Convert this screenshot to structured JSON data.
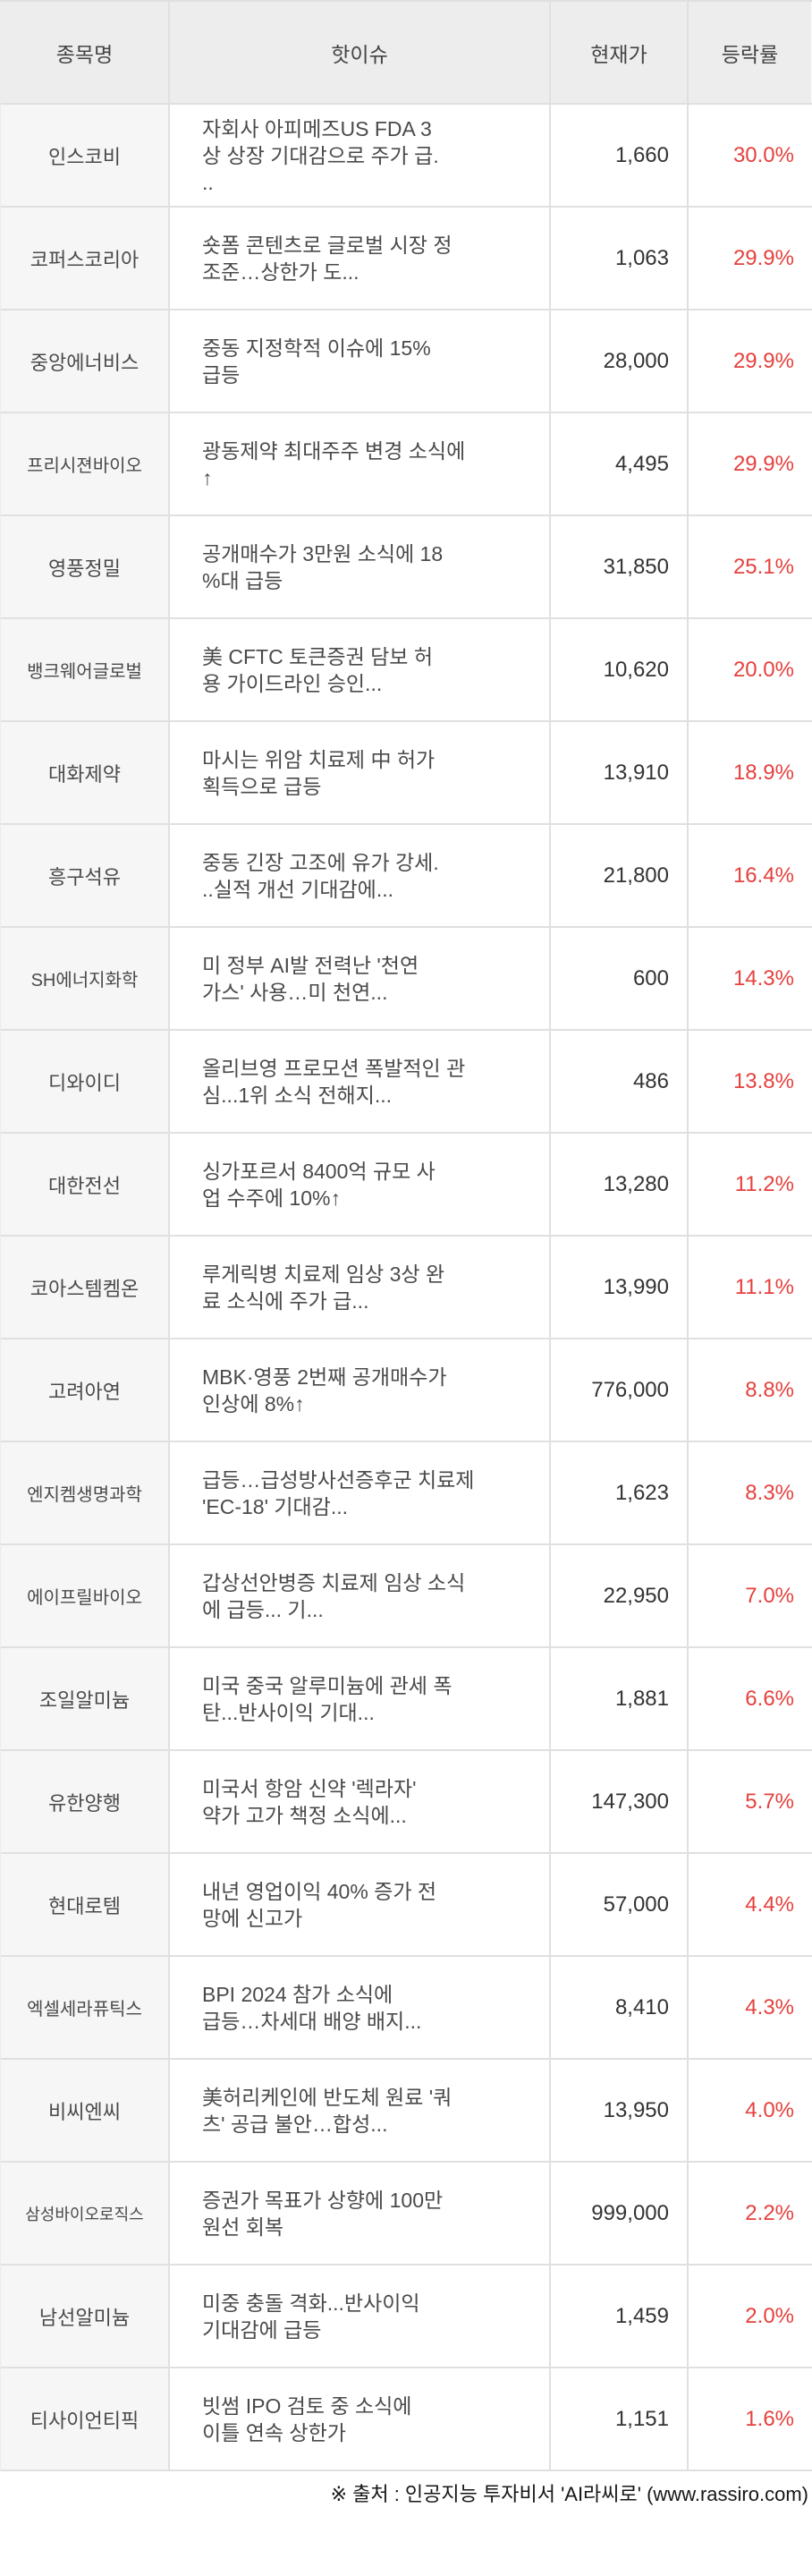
{
  "table": {
    "headers": {
      "name": "종목명",
      "issue": "핫이슈",
      "price": "현재가",
      "change": "등락률"
    },
    "rows": [
      {
        "name": "인스코비",
        "issue": "자회사 아피메즈US FDA 3\n상 상장 기대감으로 주가 급.\n..",
        "price": "1,660",
        "change": "30.0%"
      },
      {
        "name": "코퍼스코리아",
        "issue": "숏폼 콘텐츠로 글로벌 시장 정\n조준…상한가 도...",
        "price": "1,063",
        "change": "29.9%"
      },
      {
        "name": "중앙에너비스",
        "issue": "중동 지정학적 이슈에 15%\n급등",
        "price": "28,000",
        "change": "29.9%"
      },
      {
        "name": "프리시젼바이오",
        "issue": "광동제약 최대주주 변경 소식에\n↑",
        "price": "4,495",
        "change": "29.9%"
      },
      {
        "name": "영풍정밀",
        "issue": "공개매수가 3만원 소식에 18\n%대 급등",
        "price": "31,850",
        "change": "25.1%"
      },
      {
        "name": "뱅크웨어글로벌",
        "issue": "美 CFTC 토큰증권 담보 허\n용 가이드라인 승인...",
        "price": "10,620",
        "change": "20.0%"
      },
      {
        "name": "대화제약",
        "issue": "마시는 위암 치료제 中 허가\n획득으로 급등",
        "price": "13,910",
        "change": "18.9%"
      },
      {
        "name": "흥구석유",
        "issue": "중동 긴장 고조에 유가 강세.\n..실적 개선 기대감에...",
        "price": "21,800",
        "change": "16.4%"
      },
      {
        "name": "SH에너지화학",
        "issue": "미 정부 AI발 전력난 '천연\n가스' 사용…미 천연...",
        "price": "600",
        "change": "14.3%"
      },
      {
        "name": "디와이디",
        "issue": "올리브영 프로모션 폭발적인 관\n심...1위 소식 전해지...",
        "price": "486",
        "change": "13.8%"
      },
      {
        "name": "대한전선",
        "issue": "싱가포르서 8400억 규모 사\n업 수주에 10%↑",
        "price": "13,280",
        "change": "11.2%"
      },
      {
        "name": "코아스템켐온",
        "issue": "루게릭병 치료제 임상 3상 완\n료 소식에 주가 급...",
        "price": "13,990",
        "change": "11.1%"
      },
      {
        "name": "고려아연",
        "issue": "MBK·영풍 2번째 공개매수가\n인상에 8%↑",
        "price": "776,000",
        "change": "8.8%"
      },
      {
        "name": "엔지켐생명과학",
        "issue": "급등…급성방사선증후군 치료제\n'EC-18' 기대감...",
        "price": "1,623",
        "change": "8.3%"
      },
      {
        "name": "에이프릴바이오",
        "issue": "갑상선안병증 치료제 임상 소식\n에 급등... 기...",
        "price": "22,950",
        "change": "7.0%"
      },
      {
        "name": "조일알미늄",
        "issue": "미국 중국 알루미늄에 관세 폭\n탄...반사이익 기대...",
        "price": "1,881",
        "change": "6.6%"
      },
      {
        "name": "유한양행",
        "issue": "미국서 항암 신약 '렉라자'\n약가 고가 책정 소식에...",
        "price": "147,300",
        "change": "5.7%"
      },
      {
        "name": "현대로템",
        "issue": "내년 영업이익 40% 증가 전\n망에 신고가",
        "price": "57,000",
        "change": "4.4%"
      },
      {
        "name": "엑셀세라퓨틱스",
        "issue": "BPI 2024 참가 소식에\n급등…차세대 배양 배지...",
        "price": "8,410",
        "change": "4.3%"
      },
      {
        "name": "비씨엔씨",
        "issue": "美허리케인에 반도체 원료 '쿼\n츠' 공급 불안…합성...",
        "price": "13,950",
        "change": "4.0%"
      },
      {
        "name": "삼성바이오로직스",
        "issue": "증권가 목표가 상향에 100만\n원선 회복",
        "price": "999,000",
        "change": "2.2%"
      },
      {
        "name": "남선알미늄",
        "issue": "미중 충돌 격화...반사이익\n기대감에 급등",
        "price": "1,459",
        "change": "2.0%"
      },
      {
        "name": "티사이언티픽",
        "issue": "빗썸 IPO 검토 중 소식에\n이틀 연속 상한가",
        "price": "1,151",
        "change": "1.6%"
      }
    ]
  },
  "footer": {
    "source": "※ 출처 : 인공지능 투자비서 'AI라씨로' (www.rassiro.com)"
  },
  "colors": {
    "accent_red": "#e5413d",
    "header_bg": "#ededed",
    "name_col_bg": "#f6f6f6",
    "border": "#e0e0e0",
    "text": "#4a4a4a",
    "number": "#333333"
  }
}
